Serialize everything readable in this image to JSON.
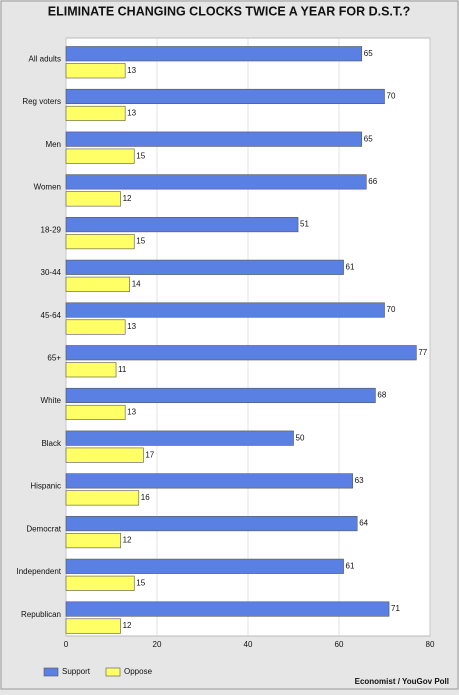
{
  "chart_data": {
    "type": "bar",
    "orientation": "horizontal",
    "title": "ELIMINATE CHANGING CLOCKS TWICE A YEAR FOR D.S.T.?",
    "categories": [
      "All adults",
      "Reg voters",
      "Men",
      "Women",
      "18-29",
      "30-44",
      "45-64",
      "65+",
      "White",
      "Black",
      "Hispanic",
      "Democrat",
      "Independent",
      "Republican"
    ],
    "series": [
      {
        "name": "Support",
        "color": "#5b80e4",
        "values": [
          65,
          70,
          65,
          66,
          51,
          61,
          70,
          77,
          68,
          50,
          63,
          64,
          61,
          71
        ]
      },
      {
        "name": "Oppose",
        "color": "#ffff66",
        "values": [
          13,
          13,
          15,
          12,
          15,
          14,
          13,
          11,
          13,
          17,
          16,
          12,
          15,
          12
        ]
      }
    ],
    "xlim": [
      0,
      80
    ],
    "xticks": [
      0,
      20,
      40,
      60,
      80
    ],
    "grid": true,
    "legend": "bottom-left",
    "source": "Economist / YouGov Poll"
  }
}
